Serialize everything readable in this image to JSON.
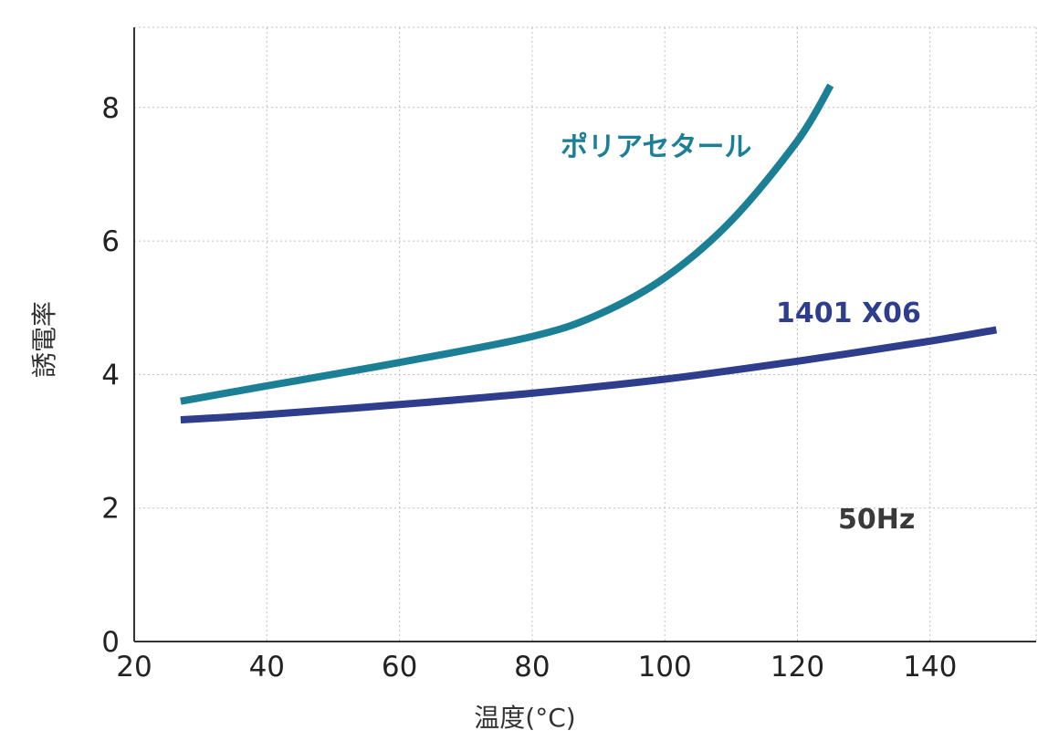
{
  "chart_data": {
    "type": "line",
    "xlabel": "温度(°C)",
    "ylabel": "誘電率",
    "xlim": [
      20,
      156
    ],
    "ylim": [
      0,
      9.2
    ],
    "x_ticks": [
      20,
      40,
      60,
      80,
      100,
      120,
      140
    ],
    "y_ticks": [
      0,
      2,
      4,
      6,
      8
    ],
    "grid": true,
    "annotation": "50Hz",
    "series": [
      {
        "name": "ポリアセタール",
        "color": "#1b8096",
        "points": [
          [
            27,
            3.6
          ],
          [
            40,
            3.83
          ],
          [
            60,
            4.18
          ],
          [
            80,
            4.57
          ],
          [
            90,
            4.9
          ],
          [
            100,
            5.45
          ],
          [
            110,
            6.3
          ],
          [
            120,
            7.5
          ],
          [
            125,
            8.33
          ]
        ]
      },
      {
        "name": "1401 X06",
        "color": "#2e3d8c",
        "points": [
          [
            27,
            3.32
          ],
          [
            40,
            3.4
          ],
          [
            60,
            3.55
          ],
          [
            80,
            3.72
          ],
          [
            100,
            3.93
          ],
          [
            120,
            4.2
          ],
          [
            140,
            4.5
          ],
          [
            150,
            4.67
          ]
        ]
      }
    ]
  }
}
